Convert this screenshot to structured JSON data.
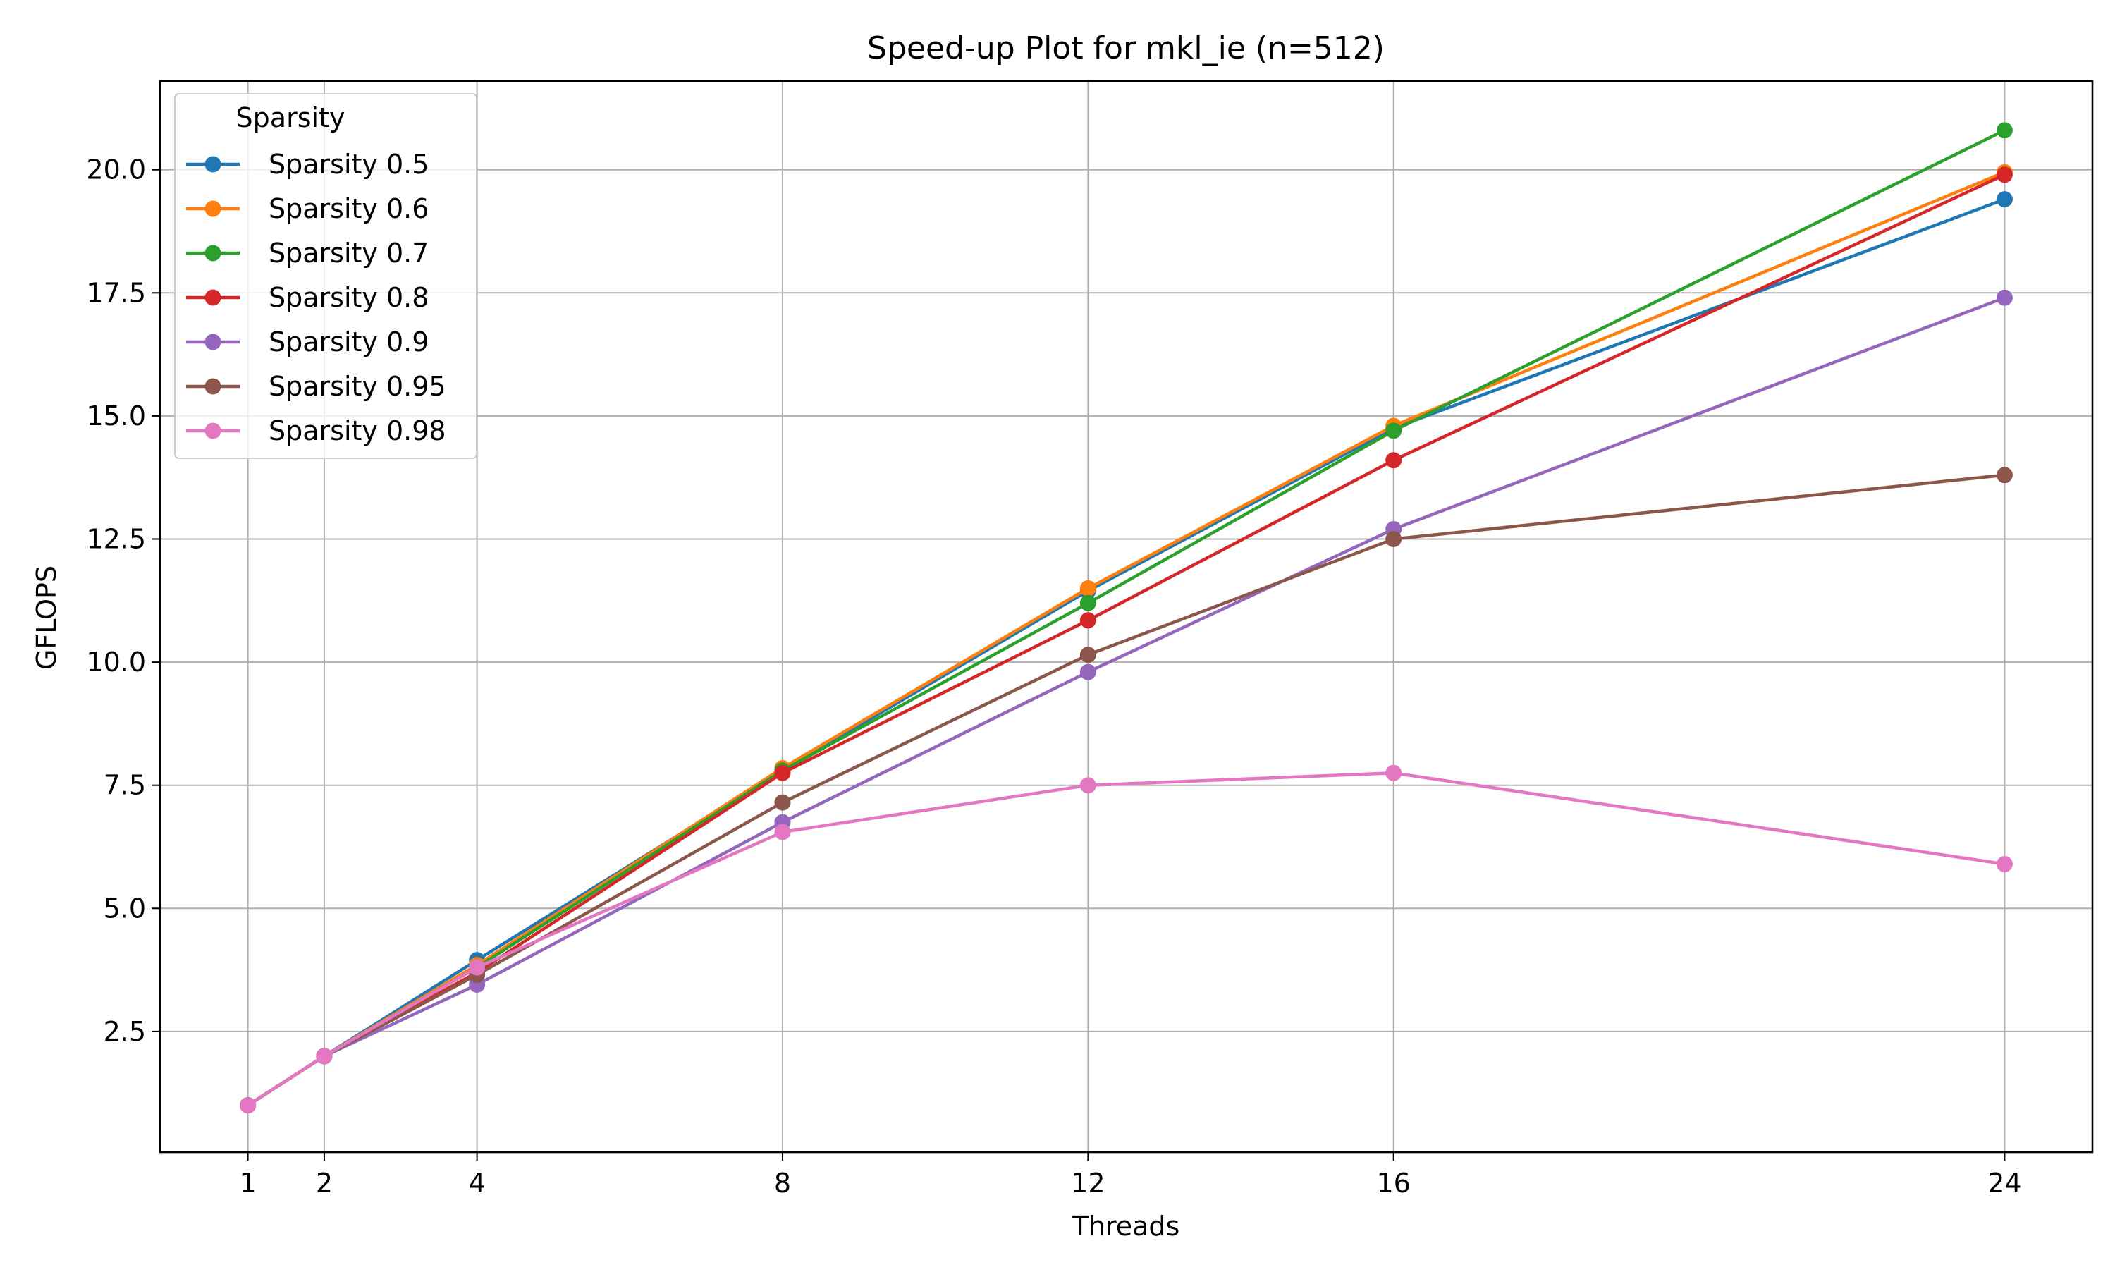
{
  "chart_data": {
    "type": "line",
    "title": "Speed-up Plot for mkl_ie (n=512)",
    "xlabel": "Threads",
    "ylabel": "GFLOPS",
    "x": [
      1,
      2,
      4,
      8,
      12,
      16,
      24
    ],
    "xticks": [
      "1",
      "2",
      "4",
      "8",
      "12",
      "16",
      "24"
    ],
    "yticks": [
      "2.5",
      "5.0",
      "7.5",
      "10.0",
      "12.5",
      "15.0",
      "17.5",
      "20.0"
    ],
    "xlim": [
      -0.15,
      25.15
    ],
    "ylim": [
      0.05,
      21.8
    ],
    "grid": true,
    "legend": {
      "title": "Sparsity",
      "placement": "upper-left"
    },
    "series": [
      {
        "name": "Sparsity 0.5",
        "color": "#1f77b4",
        "values": [
          1.0,
          2.0,
          3.95,
          7.8,
          11.45,
          14.75,
          19.4
        ]
      },
      {
        "name": "Sparsity 0.6",
        "color": "#ff7f0e",
        "values": [
          1.0,
          2.0,
          3.85,
          7.85,
          11.5,
          14.8,
          19.95
        ]
      },
      {
        "name": "Sparsity 0.7",
        "color": "#2ca02c",
        "values": [
          1.0,
          2.0,
          3.8,
          7.8,
          11.2,
          14.7,
          20.8
        ]
      },
      {
        "name": "Sparsity 0.8",
        "color": "#d62728",
        "values": [
          1.0,
          2.0,
          3.7,
          7.75,
          10.85,
          14.1,
          19.9
        ]
      },
      {
        "name": "Sparsity 0.9",
        "color": "#9467bd",
        "values": [
          1.0,
          2.0,
          3.45,
          6.75,
          9.8,
          12.7,
          17.4
        ]
      },
      {
        "name": "Sparsity 0.95",
        "color": "#8c564b",
        "values": [
          1.0,
          2.0,
          3.65,
          7.15,
          10.15,
          12.5,
          13.8
        ]
      },
      {
        "name": "Sparsity 0.98",
        "color": "#e377c2",
        "values": [
          1.0,
          2.0,
          3.8,
          6.55,
          7.5,
          7.75,
          5.9
        ]
      }
    ]
  }
}
